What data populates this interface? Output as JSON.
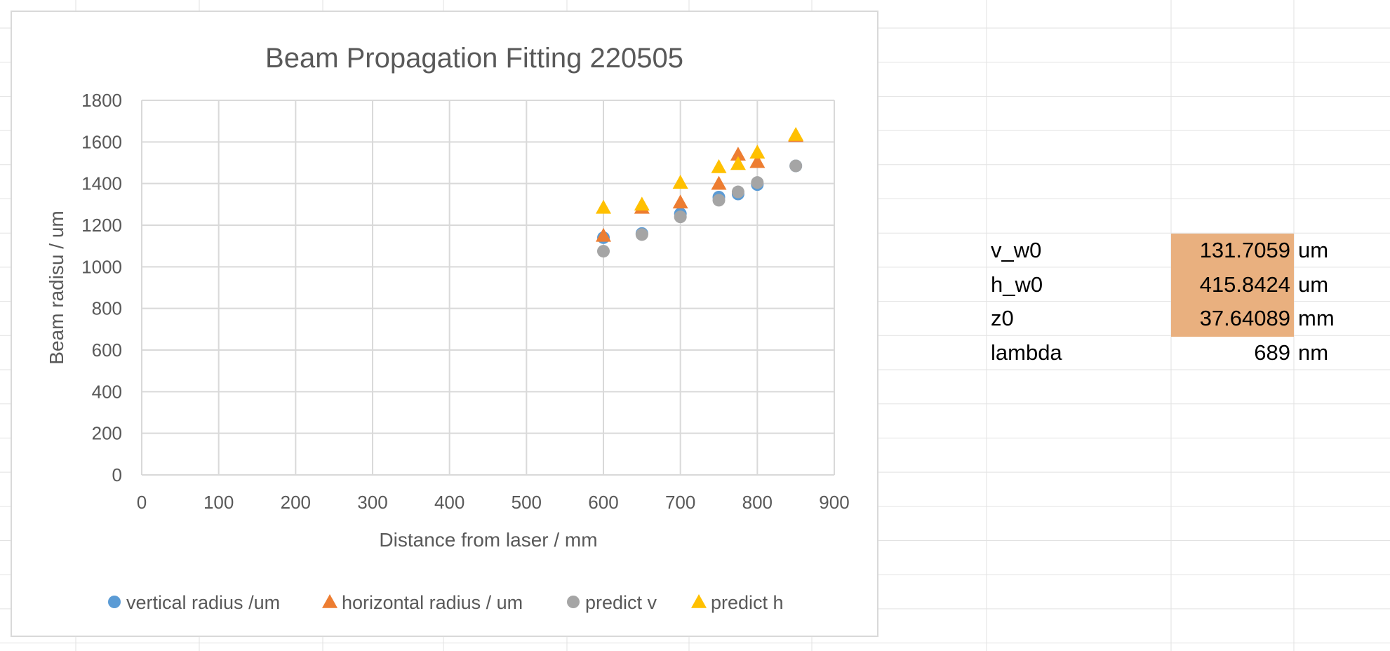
{
  "chart_data": {
    "type": "scatter",
    "title": "Beam Propagation Fitting 220505",
    "xlabel": "Distance from laser / mm",
    "ylabel": "Beam radisu / um",
    "xlim": [
      0,
      900
    ],
    "ylim": [
      0,
      1800
    ],
    "xticks": [
      "0",
      "100",
      "200",
      "300",
      "400",
      "500",
      "600",
      "700",
      "800",
      "900"
    ],
    "yticks": [
      "0",
      "200",
      "400",
      "600",
      "800",
      "1000",
      "1200",
      "1400",
      "1600",
      "1800"
    ],
    "grid": true,
    "legend_position": "bottom",
    "series": [
      {
        "name": "vertical radius /um",
        "marker": "circle",
        "color": "#5B9BD5",
        "x": [
          600,
          650,
          700,
          750,
          775,
          800,
          850
        ],
        "y": [
          1140,
          1160,
          1255,
          1335,
          1350,
          1395,
          1485
        ]
      },
      {
        "name": "horizontal radius / um",
        "marker": "triangle",
        "color": "#ED7D31",
        "x": [
          600,
          650,
          700,
          750,
          775,
          800,
          850
        ],
        "y": [
          1150,
          1285,
          1310,
          1400,
          1540,
          1505,
          1630
        ]
      },
      {
        "name": "predict v",
        "marker": "circle",
        "color": "#A5A5A5",
        "x": [
          600,
          650,
          700,
          750,
          775,
          800,
          850
        ],
        "y": [
          1075,
          1155,
          1240,
          1320,
          1360,
          1405,
          1485
        ]
      },
      {
        "name": "predict h",
        "marker": "triangle",
        "color": "#FFC000",
        "x": [
          600,
          650,
          700,
          750,
          775,
          800,
          850
        ],
        "y": [
          1285,
          1300,
          1405,
          1480,
          1495,
          1550,
          1635
        ]
      }
    ]
  },
  "parameters": [
    {
      "label": "v_w0",
      "value": "131.7059",
      "unit": "um",
      "highlight": true
    },
    {
      "label": "h_w0",
      "value": "415.8424",
      "unit": "um",
      "highlight": true
    },
    {
      "label": "z0",
      "value": "37.64089",
      "unit": "mm",
      "highlight": true
    },
    {
      "label": "lambda",
      "value": "689",
      "unit": "nm",
      "highlight": false
    }
  ],
  "colors": {
    "highlight_fill": "#E9B07F",
    "gridline": "#d9d9d9",
    "sheet_gridline": "#e2e2e2"
  }
}
